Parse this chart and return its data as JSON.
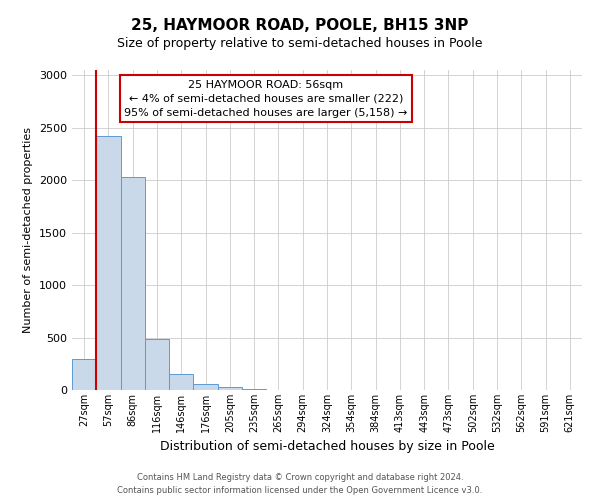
{
  "title": "25, HAYMOOR ROAD, POOLE, BH15 3NP",
  "subtitle": "Size of property relative to semi-detached houses in Poole",
  "xlabel": "Distribution of semi-detached houses by size in Poole",
  "ylabel": "Number of semi-detached properties",
  "bar_labels": [
    "27sqm",
    "57sqm",
    "86sqm",
    "116sqm",
    "146sqm",
    "176sqm",
    "205sqm",
    "235sqm",
    "265sqm",
    "294sqm",
    "324sqm",
    "354sqm",
    "384sqm",
    "413sqm",
    "443sqm",
    "473sqm",
    "502sqm",
    "532sqm",
    "562sqm",
    "591sqm",
    "621sqm"
  ],
  "bar_values": [
    300,
    2420,
    2030,
    490,
    155,
    60,
    30,
    5,
    0,
    0,
    0,
    0,
    0,
    0,
    0,
    0,
    0,
    0,
    0,
    0,
    0
  ],
  "bar_color": "#c9d9ea",
  "bar_edge_color": "#5b9bd5",
  "ylim": [
    0,
    3050
  ],
  "yticks": [
    0,
    500,
    1000,
    1500,
    2000,
    2500,
    3000
  ],
  "annotation_title": "25 HAYMOOR ROAD: 56sqm",
  "annotation_line1": "← 4% of semi-detached houses are smaller (222)",
  "annotation_line2": "95% of semi-detached houses are larger (5,158) →",
  "footer_line1": "Contains HM Land Registry data © Crown copyright and database right 2024.",
  "footer_line2": "Contains public sector information licensed under the Open Government Licence v3.0.",
  "background_color": "#ffffff",
  "grid_color": "#cccccc",
  "annotation_box_color": "#ffffff",
  "annotation_box_edge": "#cc0000",
  "red_line_color": "#cc0000",
  "red_line_x": 0.5
}
